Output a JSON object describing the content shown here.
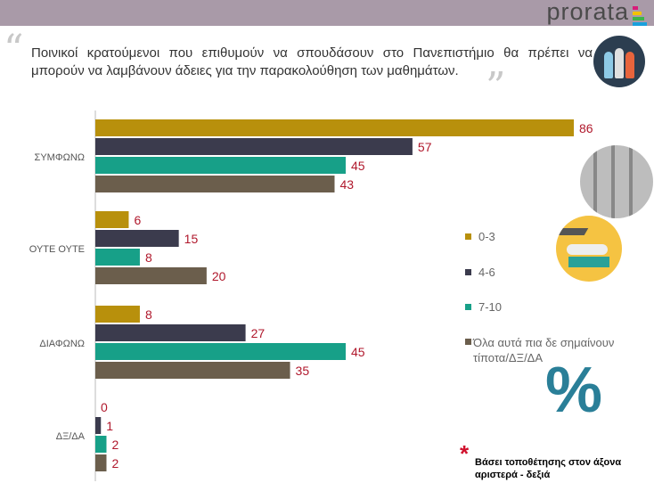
{
  "header": {
    "logo": "prorata"
  },
  "title": "Ποινικοί κρατούμενοι που επιθυμούν να σπουδάσουν στο Πανεπιστήμιο θα πρέπει να μπορούν να λαμβάνουν άδειες για την παρακολούθηση των μαθημάτων.",
  "note": "Βάσει τοποθέτησης στον άξονα αριστερά - δεξιά",
  "percent_symbol": "%",
  "chart_data": {
    "type": "bar",
    "orientation": "horizontal",
    "categories": [
      "ΣΥΜΦΩΝΩ",
      "ΟΥΤΕ ΟΥΤΕ",
      "ΔΙΑΦΩΝΩ",
      "ΔΞ/ΔΑ"
    ],
    "series": [
      {
        "name": "0-3",
        "color": "#b8900c",
        "values": [
          86,
          6,
          8,
          0
        ]
      },
      {
        "name": "4-6",
        "color": "#3b3b4d",
        "values": [
          57,
          15,
          27,
          1
        ]
      },
      {
        "name": "7-10",
        "color": "#17a088",
        "values": [
          45,
          8,
          45,
          2
        ]
      },
      {
        "name": "Όλα αυτά πια δε σημαίνουν τίποτα/ΔΞ/ΔΑ",
        "color": "#6b5e4c",
        "values": [
          43,
          20,
          35,
          2
        ]
      }
    ],
    "xlim": [
      0,
      86
    ],
    "legend": "right",
    "unit": "%",
    "label_color": "#b0182c"
  }
}
